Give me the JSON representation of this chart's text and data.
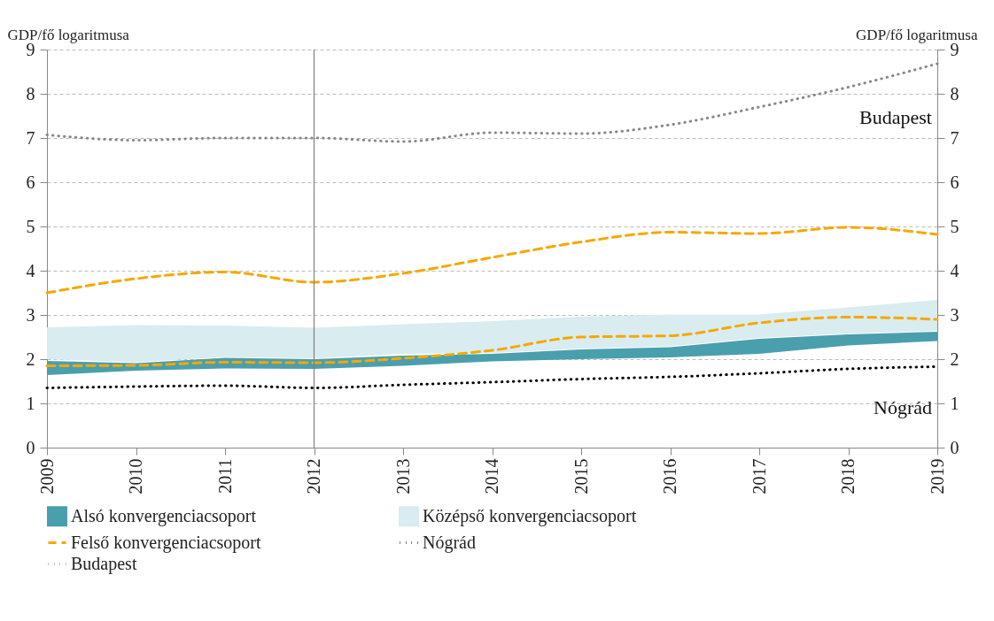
{
  "chart_data": {
    "type": "line",
    "ylabel": "GDP/fő logaritmusa",
    "y2label": "GDP/fő logaritmusa",
    "categories": [
      "2009",
      "2010",
      "2011",
      "2012",
      "2013",
      "2014",
      "2015",
      "2016",
      "2017",
      "2018",
      "2019"
    ],
    "series": [
      {
        "name": "Alsó konvergenciacsoport",
        "type": "area",
        "color": "#4a9fad",
        "values": [
          null,
          null,
          null,
          null,
          null,
          null,
          null,
          null,
          null,
          null,
          null
        ],
        "lower": [
          1.64,
          1.74,
          1.79,
          1.78,
          1.85,
          1.95,
          2.0,
          2.04,
          2.12,
          2.31,
          2.41
        ],
        "upper": [
          1.96,
          1.91,
          2.03,
          2.0,
          2.08,
          2.12,
          2.22,
          2.27,
          2.46,
          2.56,
          2.62
        ]
      },
      {
        "name": "Középső konvergenciacsoport",
        "type": "area",
        "color": "#d9ecf0",
        "values": [
          null,
          null,
          null,
          null,
          null,
          null,
          null,
          null,
          null,
          null,
          null
        ],
        "lower": [
          2.0,
          1.93,
          2.05,
          2.02,
          2.12,
          2.14,
          2.24,
          2.29,
          2.48,
          2.58,
          2.64
        ],
        "upper": [
          2.72,
          2.77,
          2.76,
          2.71,
          2.79,
          2.86,
          2.96,
          3.01,
          3.01,
          3.17,
          3.34
        ]
      },
      {
        "name": "Felső konvergenciacsoport",
        "color": "#f5a800",
        "line_style": "dashed",
        "values": [
          3.5,
          3.82,
          3.97,
          3.74,
          3.94,
          4.3,
          4.65,
          4.87,
          4.84,
          4.98,
          4.82
        ]
      },
      {
        "color": "#f5a800",
        "line_style": "dashed",
        "values": [
          1.85,
          1.86,
          1.93,
          1.92,
          2.02,
          2.2,
          2.5,
          2.53,
          2.82,
          2.95,
          2.9
        ]
      },
      {
        "name": "Nógrád",
        "color": "#000000",
        "line_style": "dotted",
        "values": [
          1.35,
          1.38,
          1.4,
          1.35,
          1.42,
          1.48,
          1.55,
          1.6,
          1.68,
          1.78,
          1.83
        ]
      },
      {
        "name": "Budapest",
        "color": "#888888",
        "line_style": "dotted",
        "values": [
          7.07,
          6.95,
          7.0,
          7.0,
          6.92,
          7.12,
          7.1,
          7.3,
          7.7,
          8.15,
          8.68
        ]
      }
    ],
    "ylim": [
      0,
      9
    ],
    "yticks": [
      0,
      1,
      2,
      3,
      4,
      5,
      6,
      7,
      8,
      9
    ],
    "y2lim": [
      0,
      9
    ],
    "y2ticks": [
      0,
      1,
      2,
      3,
      4,
      5,
      6,
      7,
      8,
      9
    ],
    "ref_lines": [
      {
        "axis": "x",
        "value": "2012",
        "color": "#808080"
      }
    ],
    "annotations": [
      "Budapest",
      "Nógrád"
    ],
    "grid": "y",
    "legend": "bottom"
  }
}
